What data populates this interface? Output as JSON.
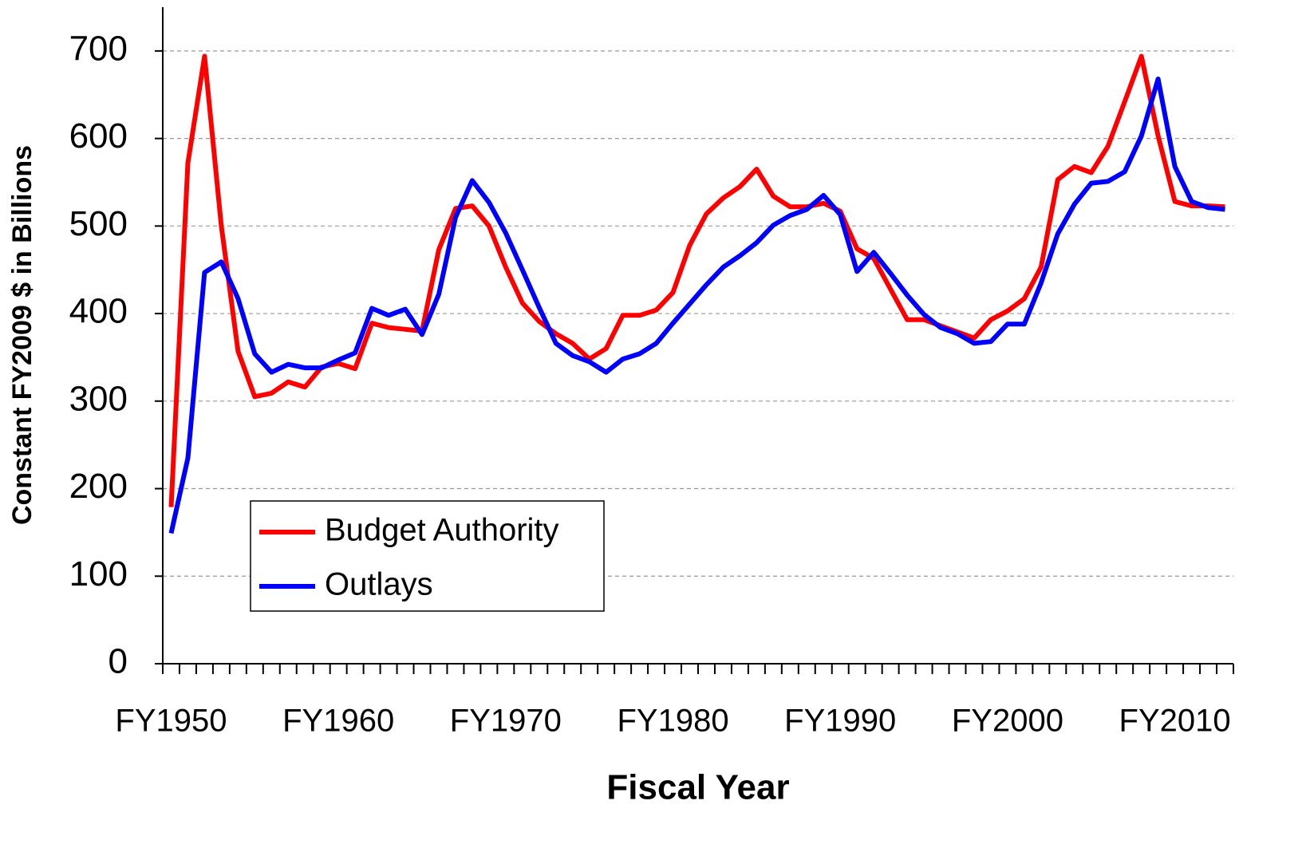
{
  "chart_data": {
    "type": "line",
    "xlabel": "Fiscal Year",
    "ylabel": "Constant FY2009 $ in Billions",
    "categories": [
      "FY1950",
      null,
      null,
      null,
      null,
      null,
      null,
      null,
      null,
      null,
      "FY1960",
      null,
      null,
      null,
      null,
      null,
      null,
      null,
      null,
      null,
      "FY1970",
      null,
      null,
      null,
      null,
      null,
      null,
      null,
      null,
      null,
      "FY1980",
      null,
      null,
      null,
      null,
      null,
      null,
      null,
      null,
      null,
      "FY1990",
      null,
      null,
      null,
      null,
      null,
      null,
      null,
      null,
      null,
      "FY2000",
      null,
      null,
      null,
      null,
      null,
      null,
      null,
      null,
      null,
      "FY2010",
      null,
      null,
      null
    ],
    "series": [
      {
        "name": "Budget Authority",
        "color": "#ff0000",
        "values": [
          179,
          572,
          694,
          500,
          357,
          305,
          309,
          322,
          316,
          339,
          343,
          337,
          389,
          384,
          382,
          380,
          473,
          520,
          523,
          500,
          453,
          412,
          391,
          377,
          366,
          348,
          360,
          398,
          398,
          404,
          424,
          478,
          514,
          532,
          545,
          565,
          534,
          522,
          522,
          526,
          517,
          474,
          463,
          428,
          393,
          393,
          386,
          379,
          372,
          393,
          403,
          417,
          453,
          553,
          568,
          561,
          591,
          642,
          694,
          603,
          528,
          523,
          523,
          522
        ]
      },
      {
        "name": "Outlays",
        "color": "#0000ff",
        "values": [
          149,
          235,
          447,
          459,
          417,
          354,
          333,
          342,
          338,
          338,
          347,
          355,
          406,
          398,
          405,
          376,
          422,
          510,
          552,
          527,
          492,
          450,
          407,
          366,
          352,
          345,
          333,
          348,
          354,
          366,
          389,
          411,
          433,
          453,
          466,
          481,
          501,
          512,
          519,
          535,
          513,
          448,
          470,
          446,
          421,
          399,
          384,
          377,
          366,
          368,
          388,
          388,
          435,
          491,
          525,
          549,
          551,
          562,
          603,
          668,
          568,
          528,
          521,
          519
        ]
      }
    ],
    "ylim": [
      0,
      750
    ],
    "yticks": [
      0,
      100,
      200,
      300,
      400,
      500,
      600,
      700
    ],
    "grid": true,
    "legend": "lower left"
  }
}
